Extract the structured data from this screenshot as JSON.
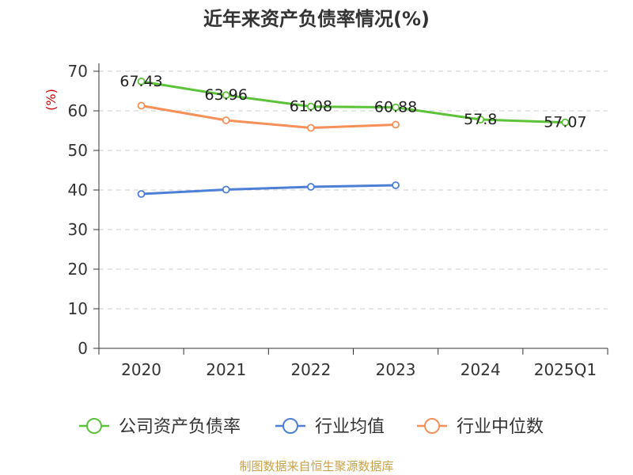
{
  "chart_data": {
    "type": "line",
    "title": "近年来资产负债率情况(%)",
    "ylabel": "(%)",
    "xlabel": "",
    "categories": [
      "2020",
      "2021",
      "2022",
      "2023",
      "2024",
      "2025Q1"
    ],
    "ylim": [
      0,
      70
    ],
    "yticks": [
      0,
      10,
      20,
      30,
      40,
      50,
      60,
      70
    ],
    "grid": true,
    "legend_position": "bottom",
    "series": [
      {
        "name": "公司资产负债率",
        "color": "#5cc23a",
        "values": [
          67.43,
          63.96,
          61.08,
          60.88,
          57.8,
          57.07
        ],
        "data_labels": [
          "67.43",
          "63.96",
          "61.08",
          "60.88",
          "57.8",
          "57.07"
        ]
      },
      {
        "name": "行业均值",
        "color": "#4e7fd6",
        "values": [
          39.0,
          40.1,
          40.8,
          41.2,
          null,
          null
        ]
      },
      {
        "name": "行业中位数",
        "color": "#f59058",
        "values": [
          61.3,
          57.6,
          55.7,
          56.5,
          null,
          null
        ]
      }
    ]
  },
  "source": "制图数据来自恒生聚源数据库"
}
